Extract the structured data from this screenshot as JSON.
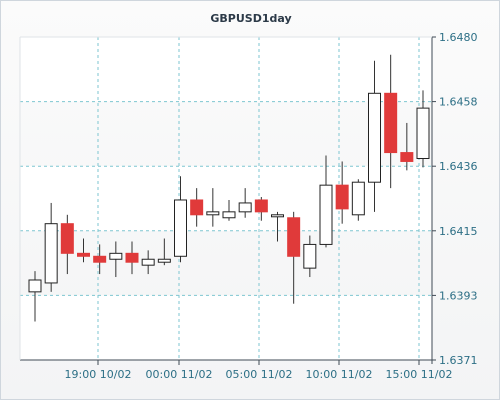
{
  "chart_data": {
    "type": "candlestick",
    "title": "GBPUSD1day",
    "y_ticks": [
      "1.6480",
      "1.6458",
      "1.6436",
      "1.6415",
      "1.6393",
      "1.6371"
    ],
    "x_ticks": [
      "19:00 10/02",
      "00:00 11/02",
      "05:00 11/02",
      "10:00 11/02",
      "15:00 11/02"
    ],
    "ylim": [
      1.6371,
      1.648
    ],
    "grid": true,
    "colors": {
      "up": "#ffffff",
      "down": "#e03a3a",
      "grid": "#7ec6d1",
      "axis": "#3f4a55"
    },
    "candles": [
      {
        "open": 1.6394,
        "high": 1.6401,
        "low": 1.6384,
        "close": 1.6398
      },
      {
        "open": 1.6397,
        "high": 1.6424,
        "low": 1.6394,
        "close": 1.6417
      },
      {
        "open": 1.6417,
        "high": 1.642,
        "low": 1.64,
        "close": 1.6407
      },
      {
        "open": 1.6407,
        "high": 1.6412,
        "low": 1.6404,
        "close": 1.6406
      },
      {
        "open": 1.6406,
        "high": 1.641,
        "low": 1.64,
        "close": 1.6404
      },
      {
        "open": 1.6405,
        "high": 1.6411,
        "low": 1.6399,
        "close": 1.6407
      },
      {
        "open": 1.6407,
        "high": 1.6411,
        "low": 1.64,
        "close": 1.6404
      },
      {
        "open": 1.6403,
        "high": 1.6408,
        "low": 1.64,
        "close": 1.6405
      },
      {
        "open": 1.6404,
        "high": 1.6412,
        "low": 1.6403,
        "close": 1.6405
      },
      {
        "open": 1.6406,
        "high": 1.6433,
        "low": 1.6404,
        "close": 1.6425
      },
      {
        "open": 1.6425,
        "high": 1.6429,
        "low": 1.6416,
        "close": 1.642
      },
      {
        "open": 1.642,
        "high": 1.6429,
        "low": 1.6416,
        "close": 1.6421
      },
      {
        "open": 1.6419,
        "high": 1.6425,
        "low": 1.6418,
        "close": 1.6421
      },
      {
        "open": 1.6421,
        "high": 1.6429,
        "low": 1.6419,
        "close": 1.6424
      },
      {
        "open": 1.6425,
        "high": 1.6426,
        "low": 1.6418,
        "close": 1.6421
      },
      {
        "open": 1.642,
        "high": 1.6421,
        "low": 1.6411,
        "close": 1.642
      },
      {
        "open": 1.6419,
        "high": 1.6421,
        "low": 1.639,
        "close": 1.6406
      },
      {
        "open": 1.6402,
        "high": 1.6413,
        "low": 1.6399,
        "close": 1.641
      },
      {
        "open": 1.641,
        "high": 1.644,
        "low": 1.6409,
        "close": 1.643
      },
      {
        "open": 1.643,
        "high": 1.6438,
        "low": 1.6417,
        "close": 1.6422
      },
      {
        "open": 1.642,
        "high": 1.6432,
        "low": 1.6418,
        "close": 1.6431
      },
      {
        "open": 1.6431,
        "high": 1.6472,
        "low": 1.6421,
        "close": 1.6461
      },
      {
        "open": 1.6461,
        "high": 1.6474,
        "low": 1.6429,
        "close": 1.6441
      },
      {
        "open": 1.6441,
        "high": 1.6451,
        "low": 1.6435,
        "close": 1.6438
      },
      {
        "open": 1.6439,
        "high": 1.6462,
        "low": 1.6436,
        "close": 1.6456
      }
    ]
  }
}
